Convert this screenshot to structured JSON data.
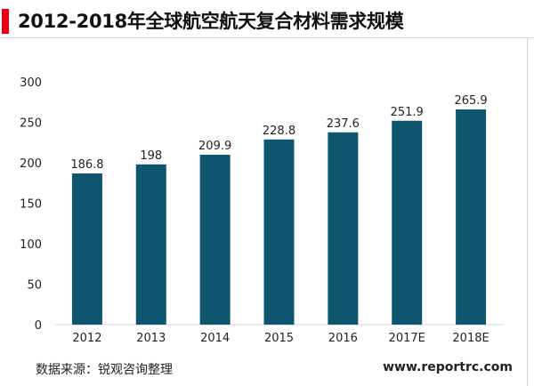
{
  "title": "2012-2018年全球航空航天复合材料需求规模",
  "footer": {
    "source": "数据来源：锐观咨询整理",
    "website": "www.reportrc.com"
  },
  "colors": {
    "accent": "#e60012",
    "bar": "#0e5670",
    "text": "#222222",
    "axis": "#d9d9d9"
  },
  "chart_data": {
    "type": "bar",
    "categories": [
      "2012",
      "2013",
      "2014",
      "2015",
      "2016",
      "2017E",
      "2018E"
    ],
    "values": [
      186.8,
      198,
      209.9,
      228.8,
      237.6,
      251.9,
      265.9
    ],
    "value_labels": [
      "186.8",
      "198",
      "209.9",
      "228.8",
      "237.6",
      "251.9",
      "265.9"
    ],
    "ylim": [
      0,
      300
    ],
    "yticks": [
      0,
      50,
      100,
      150,
      200,
      250,
      300
    ],
    "grid": false,
    "legend": "none"
  }
}
